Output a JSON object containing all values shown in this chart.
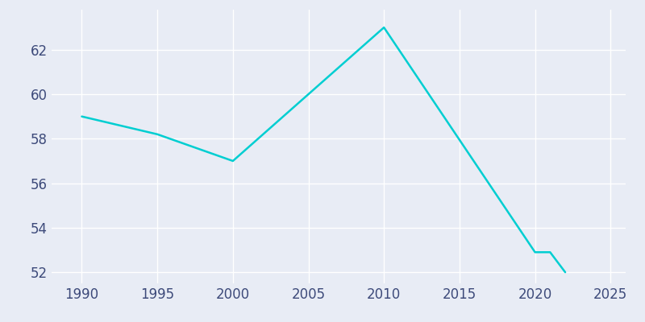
{
  "years": [
    1990,
    1995,
    2000,
    2010,
    2020,
    2021,
    2022
  ],
  "population": [
    59,
    58.2,
    57,
    63,
    52.9,
    52.9,
    52
  ],
  "line_color": "#00CED1",
  "bg_color": "#e8ecf5",
  "grid_color": "#ffffff",
  "tick_color": "#3d4a7a",
  "xlim": [
    1988,
    2026
  ],
  "ylim": [
    51.5,
    63.8
  ],
  "xticks": [
    1990,
    1995,
    2000,
    2005,
    2010,
    2015,
    2020,
    2025
  ],
  "yticks": [
    52,
    54,
    56,
    58,
    60,
    62
  ],
  "linewidth": 1.8,
  "tick_fontsize": 12
}
